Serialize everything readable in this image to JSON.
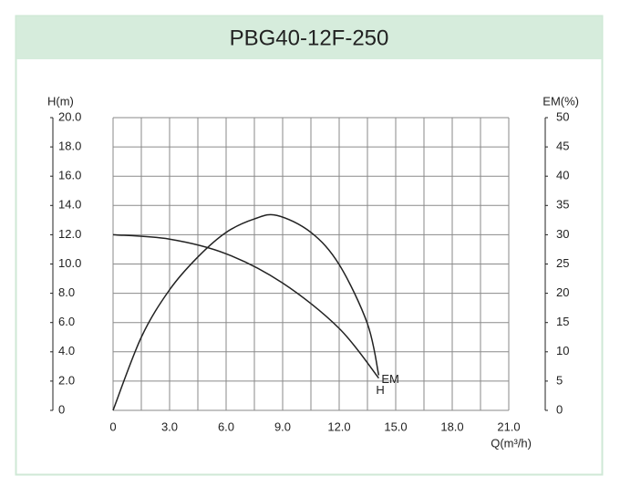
{
  "chart_data": {
    "type": "line",
    "title": "PBG40-12F-250",
    "x_label": "Q(m³/h)",
    "y_label": "H(m)",
    "y2_label": "EM(%)",
    "xlim": [
      0,
      21
    ],
    "xticks": [
      0,
      {
        "value": 3,
        "label": "3.0"
      },
      {
        "value": 6,
        "label": "6.0"
      },
      {
        "value": 9,
        "label": "9.0"
      },
      {
        "value": 12,
        "label": "12.0"
      },
      {
        "value": 15,
        "label": "15.0"
      },
      {
        "value": 18,
        "label": "18.0"
      },
      {
        "value": 21,
        "label": "21.0"
      }
    ],
    "ylim": [
      0,
      20
    ],
    "yticks": [
      0,
      {
        "value": 2,
        "label": "2.0"
      },
      {
        "value": 4,
        "label": "4.0"
      },
      {
        "value": 6,
        "label": "6.0"
      },
      {
        "value": 8,
        "label": "8.0"
      },
      {
        "value": 10,
        "label": "10.0"
      },
      {
        "value": 12,
        "label": "12.0"
      },
      {
        "value": 14,
        "label": "14.0"
      },
      {
        "value": 16,
        "label": "16.0"
      },
      {
        "value": 18,
        "label": "18.0"
      },
      {
        "value": 20,
        "label": "20.0"
      }
    ],
    "y2lim": [
      0,
      50
    ],
    "y2ticks": [
      0,
      5,
      10,
      15,
      20,
      25,
      30,
      35,
      40,
      45,
      50
    ],
    "grid": true,
    "series": [
      {
        "name": "H",
        "color": "#222222",
        "x": [
          0,
          3,
          6,
          9,
          12,
          14.1
        ],
        "values": [
          12.0,
          11.7,
          10.7,
          8.7,
          5.6,
          2.2
        ]
      },
      {
        "name": "EM",
        "color": "#222222",
        "axis": "y2",
        "x": [
          0,
          1.5,
          3,
          4.5,
          6,
          7.5,
          8.7,
          10.5,
          12,
          13.5,
          14.1
        ],
        "values": [
          0,
          12.5,
          20.6,
          26.2,
          30.4,
          32.7,
          33.3,
          30.4,
          24.9,
          14.8,
          6
        ]
      }
    ]
  }
}
